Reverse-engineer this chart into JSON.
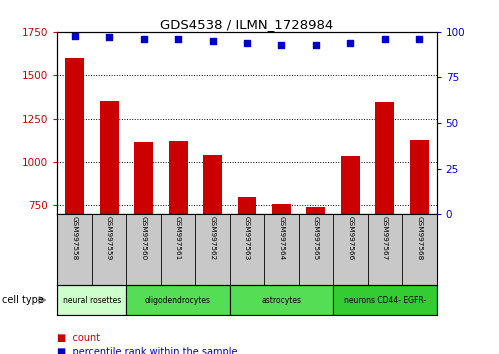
{
  "title": "GDS4538 / ILMN_1728984",
  "samples": [
    "GSM997558",
    "GSM997559",
    "GSM997560",
    "GSM997561",
    "GSM997562",
    "GSM997563",
    "GSM997564",
    "GSM997565",
    "GSM997566",
    "GSM997567",
    "GSM997568"
  ],
  "counts": [
    1600,
    1350,
    1115,
    1120,
    1040,
    800,
    760,
    740,
    1035,
    1345,
    1130
  ],
  "percentiles": [
    98,
    97,
    96,
    96,
    95,
    94,
    93,
    93,
    94,
    96,
    96
  ],
  "ylim_left": [
    700,
    1750
  ],
  "ylim_right": [
    0,
    100
  ],
  "yticks_left": [
    750,
    1000,
    1250,
    1500,
    1750
  ],
  "yticks_right": [
    0,
    25,
    50,
    75,
    100
  ],
  "bar_color": "#cc0000",
  "dot_color": "#0000cc",
  "bg_color": "#ffffff",
  "cell_types": [
    {
      "label": "neural rosettes",
      "start": 0,
      "end": 2,
      "color": "#ccffcc"
    },
    {
      "label": "oligodendrocytes",
      "start": 2,
      "end": 5,
      "color": "#55dd55"
    },
    {
      "label": "astrocytes",
      "start": 5,
      "end": 8,
      "color": "#55dd55"
    },
    {
      "label": "neurons CD44- EGFR-",
      "start": 8,
      "end": 11,
      "color": "#33cc33"
    }
  ],
  "tick_color_left": "#cc0000",
  "tick_color_right": "#0000cc",
  "legend_items": [
    {
      "label": "count",
      "color": "#cc0000"
    },
    {
      "label": "percentile rank within the sample",
      "color": "#0000cc"
    }
  ],
  "cell_type_label": "cell type",
  "xtick_bg": "#c8c8c8"
}
